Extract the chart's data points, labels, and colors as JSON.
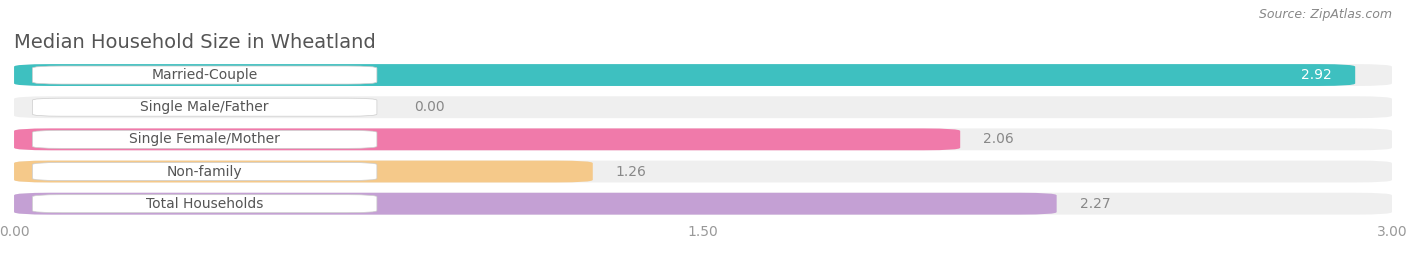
{
  "title": "Median Household Size in Wheatland",
  "source": "Source: ZipAtlas.com",
  "categories": [
    "Married-Couple",
    "Single Male/Father",
    "Single Female/Mother",
    "Non-family",
    "Total Households"
  ],
  "values": [
    2.92,
    0.0,
    2.06,
    1.26,
    2.27
  ],
  "bar_colors": [
    "#3ec0c0",
    "#a8b8e8",
    "#f07aaa",
    "#f5c98a",
    "#c4a0d4"
  ],
  "xlim": [
    0,
    3.0
  ],
  "xticks": [
    0.0,
    1.5,
    3.0
  ],
  "xtick_labels": [
    "0.00",
    "1.50",
    "3.00"
  ],
  "background_color": "#ffffff",
  "bar_bg_color": "#efefef",
  "label_bg_color": "#ffffff",
  "title_fontsize": 14,
  "source_fontsize": 9,
  "label_fontsize": 10,
  "value_fontsize": 10,
  "text_color": "#555555",
  "value_color_inside": "#ffffff",
  "value_color_outside": "#888888"
}
